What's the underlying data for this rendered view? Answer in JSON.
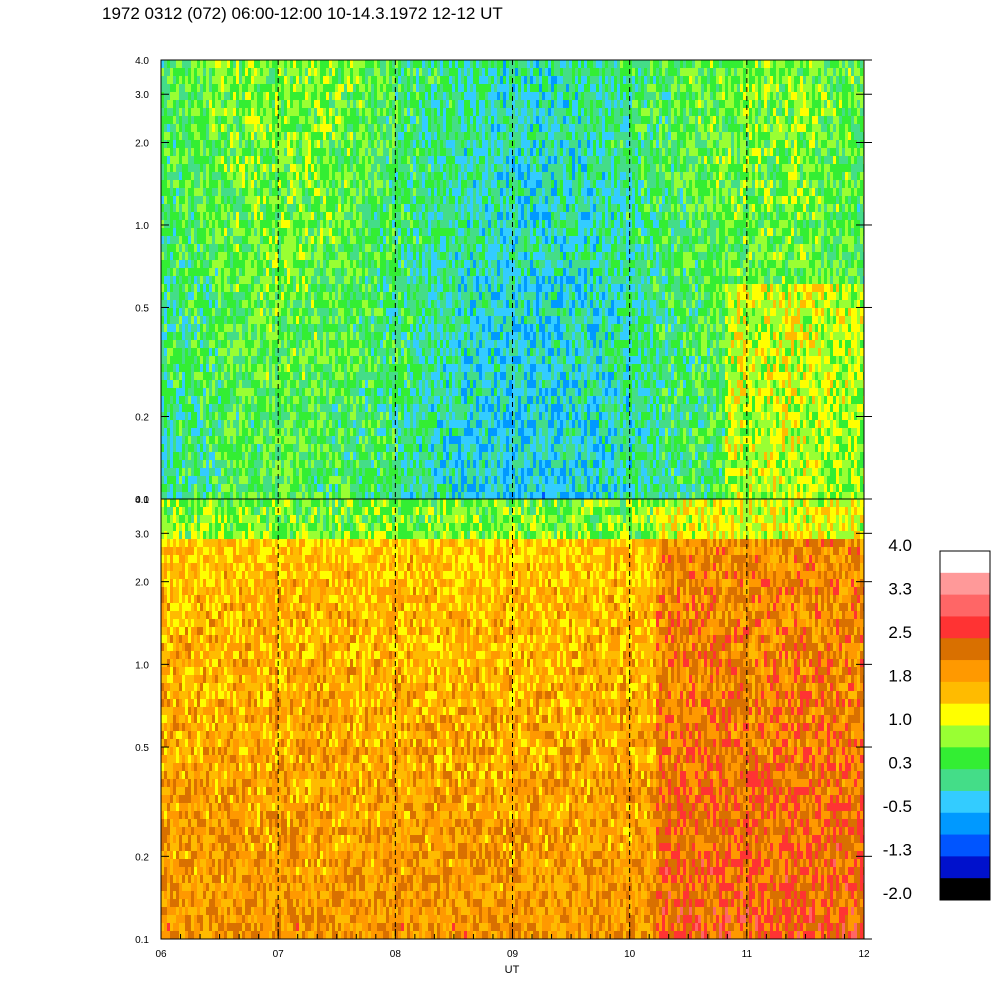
{
  "title": "1972 0312 (072) 06:00-12:00 10-14.3.1972  12-12 UT",
  "chart_data": [
    {
      "type": "heatmap",
      "panel": "top",
      "xlabel": "",
      "yscale": "log",
      "ylim": [
        0.1,
        4.0
      ],
      "yticks": [
        {
          "value": 0.1,
          "label": "0.1"
        },
        {
          "value": 0.2,
          "label": "0.2"
        },
        {
          "value": 0.5,
          "label": "0.5"
        },
        {
          "value": 1.0,
          "label": "1.0"
        },
        {
          "value": 2.0,
          "label": "2.0"
        },
        {
          "value": 3.0,
          "label": "3.0"
        },
        {
          "value": 4.0,
          "label": "4.0"
        }
      ],
      "xlim": [
        6,
        12
      ],
      "dominant_range": [
        -0.5,
        1.0
      ],
      "grid": "dashed vertical lines at each hour"
    },
    {
      "type": "heatmap",
      "panel": "bottom",
      "xlabel": "UT",
      "yscale": "log",
      "ylim": [
        0.1,
        4.0
      ],
      "yticks": [
        {
          "value": 0.1,
          "label": "0.1"
        },
        {
          "value": 0.2,
          "label": "0.2"
        },
        {
          "value": 0.5,
          "label": "0.5"
        },
        {
          "value": 1.0,
          "label": "1.0"
        },
        {
          "value": 2.0,
          "label": "2.0"
        },
        {
          "value": 3.0,
          "label": "3.0"
        },
        {
          "value": 4.0,
          "label": "4.0"
        }
      ],
      "xlim": [
        6,
        12
      ],
      "xticks": [
        {
          "value": 6,
          "label": "06"
        },
        {
          "value": 7,
          "label": "07"
        },
        {
          "value": 8,
          "label": "08"
        },
        {
          "value": 9,
          "label": "09"
        },
        {
          "value": 10,
          "label": "10"
        },
        {
          "value": 11,
          "label": "11"
        },
        {
          "value": 12,
          "label": "12"
        }
      ],
      "dominant_range": [
        1.0,
        2.5
      ],
      "grid": "dashed vertical lines at each hour"
    }
  ],
  "colorbar": {
    "labels": [
      "4.0",
      "3.3",
      "2.5",
      "1.8",
      "1.0",
      "0.3",
      "-0.5",
      "-1.3",
      "-2.0"
    ],
    "colors": [
      "#ffffff",
      "#ff9999",
      "#ff6666",
      "#ff3333",
      "#d97000",
      "#ff9900",
      "#ffbb00",
      "#ffff00",
      "#99ff33",
      "#33ee33",
      "#44dd88",
      "#33ccff",
      "#0099ff",
      "#0055ff",
      "#0011cc",
      "#000000"
    ]
  }
}
